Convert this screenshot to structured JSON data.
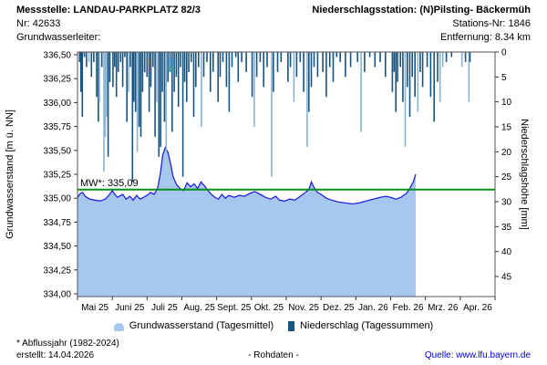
{
  "header": {
    "station_label": "Messstelle: LANDAU-PARKPLATZ 82/3",
    "station_nr": "Nr: 42633",
    "aquifer_label": "Grundwasserleiter:",
    "precip_station_label": "Niederschlagsstation: (N)Pilsting- Bäckermüh",
    "precip_station_nr": "Stations-Nr: 1846",
    "distance": "Entfernung: 8.34 km"
  },
  "legend": {
    "gw_label": "Grundwasserstand (Tagesmittel)",
    "precip_label": "Niederschlag (Tagessummen)"
  },
  "footer": {
    "footnote": "* Abflussjahr (1982-2024)",
    "created": "erstellt:  14.04.2026",
    "center": "- Rohdaten -",
    "source": "Quelle: www.lfu.bayern.de"
  },
  "colors": {
    "gw_fill": "#a6c8f0",
    "gw_line": "#2222dd",
    "bar_dark": "#17547f",
    "bar_light": "#8ab2d4",
    "mw_green": "#089114",
    "frame": "#555555",
    "tick": "#333333",
    "link_blue": "#0000cc"
  },
  "chart_data": {
    "type": "line+bar",
    "title": "",
    "x_axis": {
      "unit": "months_since_Mai_2025",
      "labels": [
        "Mai 25",
        "Juni 25",
        "Juli 25",
        "Aug. 25",
        "Sept. 25",
        "Okt. 25",
        "Nov. 25",
        "Dez. 25",
        "Jan. 26",
        "Feb. 26",
        "Mrz. 26",
        "Apr. 26"
      ]
    },
    "left_axis": {
      "label": "Grundwasserstand [m ü. NN]",
      "min": 334.0,
      "max": 336.5,
      "tick_step": 0.25,
      "tick_labels": [
        "336,50",
        "336,25",
        "336,00",
        "335,75",
        "335,50",
        "335,25",
        "335,00",
        "334,75",
        "334,50",
        "334,25",
        "334,00"
      ]
    },
    "right_axis": {
      "label": "Niederschlagshöhe [mm]",
      "min": 0,
      "max": 45,
      "tick_step": 5,
      "inverted": true,
      "tick_labels": [
        "0",
        "5",
        "10",
        "15",
        "20",
        "25",
        "30",
        "35",
        "40",
        "45"
      ]
    },
    "mw_line": {
      "value": 335.09,
      "label": "MW*: 335,09"
    },
    "series": [
      {
        "name": "Grundwasserstand (Tagesmittel)",
        "type": "area-line",
        "axis": "left",
        "unit": "m ü. NN",
        "points": [
          [
            0.0,
            335.01
          ],
          [
            0.08,
            335.05
          ],
          [
            0.15,
            335.06
          ],
          [
            0.22,
            335.02
          ],
          [
            0.35,
            334.99
          ],
          [
            0.5,
            334.98
          ],
          [
            0.65,
            334.97
          ],
          [
            0.8,
            334.99
          ],
          [
            0.9,
            335.03
          ],
          [
            1.0,
            335.08
          ],
          [
            1.05,
            335.05
          ],
          [
            1.15,
            335.01
          ],
          [
            1.3,
            335.04
          ],
          [
            1.4,
            334.99
          ],
          [
            1.5,
            335.02
          ],
          [
            1.6,
            334.98
          ],
          [
            1.7,
            335.03
          ],
          [
            1.8,
            334.99
          ],
          [
            1.9,
            335.01
          ],
          [
            2.0,
            335.03
          ],
          [
            2.1,
            335.06
          ],
          [
            2.2,
            335.04
          ],
          [
            2.3,
            335.1
          ],
          [
            2.38,
            335.25
          ],
          [
            2.45,
            335.45
          ],
          [
            2.52,
            335.53
          ],
          [
            2.6,
            335.48
          ],
          [
            2.68,
            335.35
          ],
          [
            2.75,
            335.22
          ],
          [
            2.85,
            335.14
          ],
          [
            2.95,
            335.1
          ],
          [
            3.05,
            335.08
          ],
          [
            3.15,
            335.16
          ],
          [
            3.25,
            335.12
          ],
          [
            3.35,
            335.15
          ],
          [
            3.45,
            335.1
          ],
          [
            3.55,
            335.17
          ],
          [
            3.65,
            335.13
          ],
          [
            3.75,
            335.08
          ],
          [
            3.85,
            335.04
          ],
          [
            3.95,
            335.01
          ],
          [
            4.05,
            334.99
          ],
          [
            4.15,
            335.04
          ],
          [
            4.25,
            335.0
          ],
          [
            4.35,
            335.03
          ],
          [
            4.5,
            335.01
          ],
          [
            4.65,
            335.03
          ],
          [
            4.8,
            335.02
          ],
          [
            4.95,
            335.05
          ],
          [
            5.1,
            335.07
          ],
          [
            5.25,
            335.04
          ],
          [
            5.4,
            335.01
          ],
          [
            5.55,
            334.99
          ],
          [
            5.7,
            335.02
          ],
          [
            5.8,
            334.98
          ],
          [
            5.95,
            334.97
          ],
          [
            6.1,
            334.99
          ],
          [
            6.25,
            334.98
          ],
          [
            6.4,
            335.02
          ],
          [
            6.55,
            335.06
          ],
          [
            6.65,
            335.09
          ],
          [
            6.72,
            335.17
          ],
          [
            6.8,
            335.11
          ],
          [
            6.9,
            335.06
          ],
          [
            7.0,
            335.04
          ],
          [
            7.15,
            335.0
          ],
          [
            7.3,
            334.98
          ],
          [
            7.5,
            334.96
          ],
          [
            7.7,
            334.95
          ],
          [
            7.9,
            334.94
          ],
          [
            8.1,
            334.95
          ],
          [
            8.3,
            334.97
          ],
          [
            8.5,
            334.99
          ],
          [
            8.7,
            335.01
          ],
          [
            8.85,
            335.02
          ],
          [
            9.0,
            335.01
          ],
          [
            9.15,
            334.99
          ],
          [
            9.3,
            335.01
          ],
          [
            9.45,
            335.05
          ],
          [
            9.55,
            335.1
          ],
          [
            9.65,
            335.17
          ],
          [
            9.72,
            335.25
          ]
        ]
      },
      {
        "name": "Niederschlag (Tagessummen)",
        "type": "bar",
        "axis": "right",
        "unit": "mm",
        "bars": [
          [
            0.06,
            2,
            "d"
          ],
          [
            0.1,
            8,
            "d"
          ],
          [
            0.14,
            13,
            "d"
          ],
          [
            0.2,
            1,
            "d"
          ],
          [
            0.26,
            3,
            "d"
          ],
          [
            0.33,
            2,
            "l"
          ],
          [
            0.4,
            5,
            "d"
          ],
          [
            0.47,
            2,
            "d"
          ],
          [
            0.55,
            9,
            "d"
          ],
          [
            0.6,
            14,
            "d"
          ],
          [
            0.63,
            10,
            "l"
          ],
          [
            0.7,
            3,
            "d"
          ],
          [
            0.76,
            24,
            "l"
          ],
          [
            0.8,
            17,
            "l"
          ],
          [
            0.84,
            13,
            "l"
          ],
          [
            0.88,
            21,
            "d"
          ],
          [
            0.93,
            6,
            "d"
          ],
          [
            1.02,
            7,
            "d"
          ],
          [
            1.07,
            3,
            "d"
          ],
          [
            1.12,
            9,
            "d"
          ],
          [
            1.17,
            4,
            "d"
          ],
          [
            1.24,
            2,
            "d"
          ],
          [
            1.3,
            7,
            "d"
          ],
          [
            1.36,
            1,
            "d"
          ],
          [
            1.42,
            14,
            "d"
          ],
          [
            1.47,
            8,
            "l"
          ],
          [
            1.52,
            3,
            "d"
          ],
          [
            1.58,
            26,
            "d"
          ],
          [
            1.62,
            10,
            "d"
          ],
          [
            1.67,
            12,
            "d"
          ],
          [
            1.72,
            20,
            "l"
          ],
          [
            1.77,
            15,
            "d"
          ],
          [
            1.82,
            17,
            "d"
          ],
          [
            1.87,
            8,
            "d"
          ],
          [
            1.93,
            4,
            "d"
          ],
          [
            2.0,
            5,
            "d"
          ],
          [
            2.06,
            12,
            "d"
          ],
          [
            2.11,
            7,
            "d"
          ],
          [
            2.17,
            3,
            "d"
          ],
          [
            2.23,
            17,
            "d"
          ],
          [
            2.28,
            10,
            "l"
          ],
          [
            2.34,
            21,
            "d"
          ],
          [
            2.39,
            19,
            "d"
          ],
          [
            2.44,
            8,
            "d"
          ],
          [
            2.5,
            14,
            "d"
          ],
          [
            2.55,
            20,
            "l"
          ],
          [
            2.6,
            6,
            "d"
          ],
          [
            2.66,
            4,
            "d"
          ],
          [
            2.72,
            16,
            "d"
          ],
          [
            2.78,
            8,
            "d"
          ],
          [
            2.84,
            5,
            "d"
          ],
          [
            2.9,
            11,
            "d"
          ],
          [
            2.96,
            3,
            "d"
          ],
          [
            3.03,
            25,
            "d"
          ],
          [
            3.08,
            6,
            "d"
          ],
          [
            3.14,
            10,
            "d"
          ],
          [
            3.2,
            4,
            "d"
          ],
          [
            3.27,
            2,
            "d"
          ],
          [
            3.34,
            13,
            "d"
          ],
          [
            3.4,
            7,
            "d"
          ],
          [
            3.48,
            3,
            "d"
          ],
          [
            3.56,
            15,
            "l"
          ],
          [
            3.63,
            5,
            "d"
          ],
          [
            3.72,
            2,
            "d"
          ],
          [
            3.82,
            8,
            "d"
          ],
          [
            3.9,
            4,
            "d"
          ],
          [
            4.04,
            10,
            "d"
          ],
          [
            4.1,
            5,
            "d"
          ],
          [
            4.18,
            2,
            "d"
          ],
          [
            4.28,
            7,
            "d"
          ],
          [
            4.36,
            12,
            "d"
          ],
          [
            4.44,
            3,
            "d"
          ],
          [
            4.55,
            1,
            "d"
          ],
          [
            4.62,
            6,
            "d"
          ],
          [
            4.72,
            2,
            "d"
          ],
          [
            4.85,
            4,
            "d"
          ],
          [
            5.02,
            9,
            "d"
          ],
          [
            5.08,
            15,
            "l"
          ],
          [
            5.15,
            5,
            "d"
          ],
          [
            5.25,
            2,
            "d"
          ],
          [
            5.35,
            7,
            "d"
          ],
          [
            5.45,
            3,
            "d"
          ],
          [
            5.58,
            25,
            "l"
          ],
          [
            5.63,
            8,
            "d"
          ],
          [
            5.75,
            4,
            "d"
          ],
          [
            5.85,
            2,
            "d"
          ],
          [
            6.05,
            6,
            "d"
          ],
          [
            6.12,
            3,
            "d"
          ],
          [
            6.22,
            10,
            "l"
          ],
          [
            6.3,
            5,
            "d"
          ],
          [
            6.4,
            2,
            "d"
          ],
          [
            6.5,
            8,
            "d"
          ],
          [
            6.6,
            19,
            "l"
          ],
          [
            6.65,
            12,
            "d"
          ],
          [
            6.72,
            7,
            "d"
          ],
          [
            6.8,
            3,
            "d"
          ],
          [
            6.9,
            5,
            "d"
          ],
          [
            7.05,
            4,
            "d"
          ],
          [
            7.15,
            9,
            "d"
          ],
          [
            7.25,
            3,
            "d"
          ],
          [
            7.35,
            6,
            "d"
          ],
          [
            7.45,
            1,
            "d"
          ],
          [
            7.55,
            2,
            "d"
          ],
          [
            7.7,
            5,
            "d"
          ],
          [
            7.85,
            3,
            "d"
          ],
          [
            8.05,
            2,
            "d"
          ],
          [
            8.15,
            16,
            "l"
          ],
          [
            8.25,
            4,
            "d"
          ],
          [
            8.4,
            1,
            "d"
          ],
          [
            8.55,
            3,
            "d"
          ],
          [
            8.7,
            2,
            "d"
          ],
          [
            8.85,
            5,
            "d"
          ],
          [
            9.05,
            8,
            "d"
          ],
          [
            9.1,
            4,
            "d"
          ],
          [
            9.15,
            12,
            "d"
          ],
          [
            9.2,
            6,
            "d"
          ],
          [
            9.28,
            3,
            "d"
          ],
          [
            9.35,
            10,
            "d"
          ],
          [
            9.42,
            19,
            "l"
          ],
          [
            9.48,
            7,
            "d"
          ],
          [
            9.55,
            13,
            "d"
          ],
          [
            9.62,
            5,
            "d"
          ],
          [
            9.7,
            9,
            "d"
          ],
          [
            9.78,
            12,
            "l"
          ],
          [
            9.85,
            4,
            "d"
          ],
          [
            9.92,
            7,
            "d"
          ],
          [
            10.05,
            3,
            "d"
          ],
          [
            10.15,
            9,
            "d"
          ],
          [
            10.25,
            14,
            "d"
          ],
          [
            10.35,
            6,
            "d"
          ],
          [
            10.42,
            10,
            "l"
          ],
          [
            10.5,
            3,
            "l"
          ],
          [
            10.6,
            2,
            "d"
          ],
          [
            10.75,
            1,
            "d"
          ],
          [
            11.05,
            3,
            "l"
          ],
          [
            11.15,
            2,
            "d"
          ],
          [
            11.25,
            10,
            "l"
          ],
          [
            11.28,
            2,
            "d"
          ]
        ]
      }
    ]
  }
}
